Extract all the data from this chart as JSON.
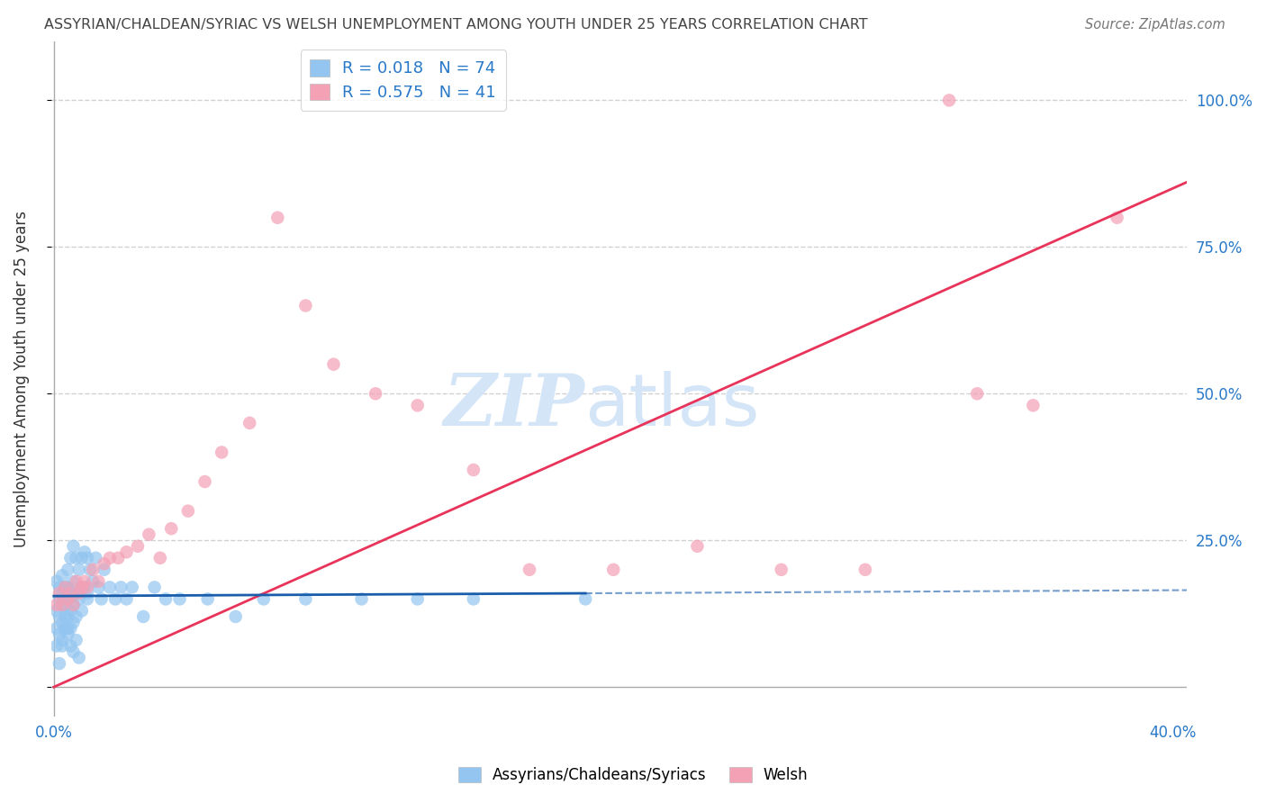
{
  "title": "ASSYRIAN/CHALDEAN/SYRIAC VS WELSH UNEMPLOYMENT AMONG YOUTH UNDER 25 YEARS CORRELATION CHART",
  "source": "Source: ZipAtlas.com",
  "ylabel": "Unemployment Among Youth under 25 years",
  "xlim": [
    -0.001,
    0.405
  ],
  "ylim": [
    -0.05,
    1.1
  ],
  "xtick_positions": [
    0.0,
    0.1,
    0.2,
    0.3,
    0.4
  ],
  "xticklabels": [
    "0.0%",
    "",
    "",
    "",
    "40.0%"
  ],
  "ytick_positions": [
    0.0,
    0.25,
    0.5,
    0.75,
    1.0
  ],
  "yticklabels": [
    "",
    "25.0%",
    "50.0%",
    "75.0%",
    "100.0%"
  ],
  "R_blue": 0.018,
  "N_blue": 74,
  "R_pink": 0.575,
  "N_pink": 41,
  "blue_dot_color": "#93C5F0",
  "pink_dot_color": "#F4A0B5",
  "blue_line_color": "#1A5DAB",
  "pink_line_color": "#E8335A",
  "axis_tick_color": "#2979C9",
  "title_color": "#444444",
  "source_color": "#777777",
  "grid_color": "#CCCCCC",
  "background_color": "#FFFFFF",
  "blue_scatter_x": [
    0.001,
    0.001,
    0.001,
    0.002,
    0.002,
    0.002,
    0.002,
    0.003,
    0.003,
    0.003,
    0.003,
    0.003,
    0.004,
    0.004,
    0.004,
    0.004,
    0.005,
    0.005,
    0.005,
    0.005,
    0.005,
    0.006,
    0.006,
    0.006,
    0.006,
    0.007,
    0.007,
    0.007,
    0.007,
    0.008,
    0.008,
    0.008,
    0.009,
    0.009,
    0.01,
    0.01,
    0.01,
    0.011,
    0.011,
    0.012,
    0.012,
    0.013,
    0.014,
    0.015,
    0.016,
    0.017,
    0.018,
    0.02,
    0.022,
    0.024,
    0.026,
    0.028,
    0.032,
    0.036,
    0.04,
    0.045,
    0.055,
    0.065,
    0.075,
    0.09,
    0.11,
    0.13,
    0.001,
    0.002,
    0.003,
    0.004,
    0.005,
    0.006,
    0.007,
    0.008,
    0.009,
    0.012,
    0.15,
    0.19
  ],
  "blue_scatter_y": [
    0.18,
    0.13,
    0.1,
    0.15,
    0.12,
    0.09,
    0.17,
    0.14,
    0.11,
    0.19,
    0.08,
    0.16,
    0.17,
    0.12,
    0.1,
    0.14,
    0.2,
    0.15,
    0.12,
    0.1,
    0.17,
    0.22,
    0.16,
    0.13,
    0.1,
    0.24,
    0.18,
    0.14,
    0.11,
    0.22,
    0.16,
    0.12,
    0.2,
    0.15,
    0.22,
    0.17,
    0.13,
    0.23,
    0.17,
    0.22,
    0.16,
    0.2,
    0.18,
    0.22,
    0.17,
    0.15,
    0.2,
    0.17,
    0.15,
    0.17,
    0.15,
    0.17,
    0.12,
    0.17,
    0.15,
    0.15,
    0.15,
    0.12,
    0.15,
    0.15,
    0.15,
    0.15,
    0.07,
    0.04,
    0.07,
    0.1,
    0.09,
    0.07,
    0.06,
    0.08,
    0.05,
    0.15,
    0.15,
    0.15
  ],
  "pink_scatter_x": [
    0.001,
    0.002,
    0.003,
    0.004,
    0.005,
    0.006,
    0.007,
    0.008,
    0.009,
    0.01,
    0.011,
    0.012,
    0.014,
    0.016,
    0.018,
    0.02,
    0.023,
    0.026,
    0.03,
    0.034,
    0.038,
    0.042,
    0.048,
    0.054,
    0.06,
    0.07,
    0.08,
    0.09,
    0.1,
    0.115,
    0.13,
    0.15,
    0.17,
    0.2,
    0.23,
    0.26,
    0.29,
    0.32,
    0.35,
    0.38,
    0.33
  ],
  "pink_scatter_y": [
    0.14,
    0.16,
    0.14,
    0.17,
    0.15,
    0.16,
    0.14,
    0.18,
    0.16,
    0.17,
    0.18,
    0.17,
    0.2,
    0.18,
    0.21,
    0.22,
    0.22,
    0.23,
    0.24,
    0.26,
    0.22,
    0.27,
    0.3,
    0.35,
    0.4,
    0.45,
    0.8,
    0.65,
    0.55,
    0.5,
    0.48,
    0.37,
    0.2,
    0.2,
    0.24,
    0.2,
    0.2,
    1.0,
    0.48,
    0.8,
    0.5
  ],
  "pink_line_x0": 0.0,
  "pink_line_y0": 0.0,
  "pink_line_x1": 0.4,
  "pink_line_y1": 0.85,
  "blue_line_x0": 0.0,
  "blue_line_y0": 0.155,
  "blue_line_x1": 0.4,
  "blue_line_y1": 0.165,
  "refline_y": 0.155,
  "watermark_text1": "ZIP",
  "watermark_text2": "atlas",
  "watermark_color": "#D5E5F8"
}
